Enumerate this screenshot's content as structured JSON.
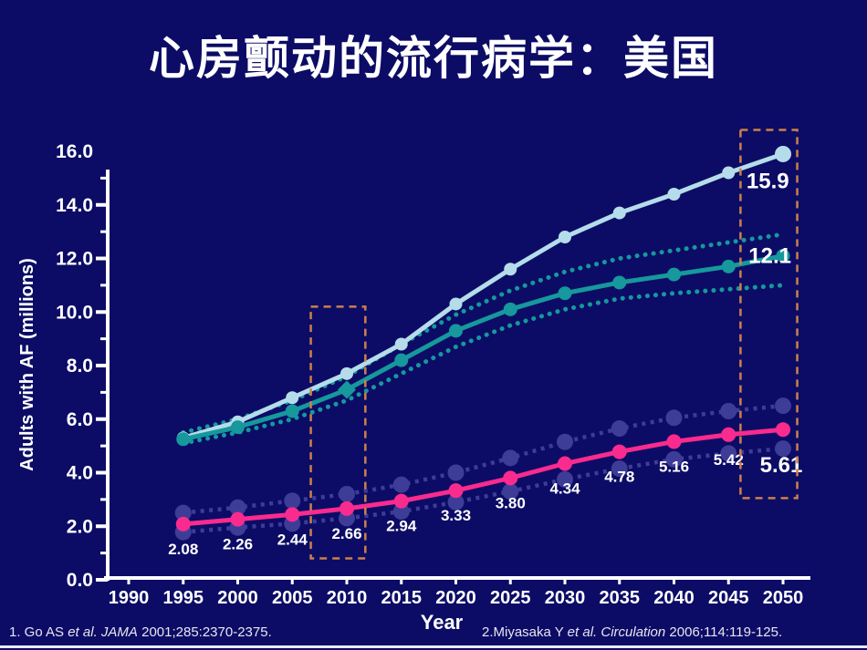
{
  "slide": {
    "title": "心房颤动的流行病学：美国",
    "footnotes": [
      {
        "parts": [
          {
            "text": "1. Go AS ",
            "italic": false
          },
          {
            "text": "et al.",
            "italic": true
          },
          {
            "text": " ",
            "italic": false
          },
          {
            "text": "JAMA",
            "italic": true
          },
          {
            "text": " 2001;285:2370-2375.",
            "italic": false
          }
        ]
      },
      {
        "parts": [
          {
            "text": "2.Miyasaka Y ",
            "italic": false
          },
          {
            "text": "et al.",
            "italic": true
          },
          {
            "text": " ",
            "italic": false
          },
          {
            "text": "Circulation",
            "italic": true
          },
          {
            "text": " 2006;114:119-125.",
            "italic": false
          }
        ]
      }
    ]
  },
  "chart_data": {
    "type": "line",
    "title": "心房颤动的流行病学：美国",
    "xlabel": "Year",
    "ylabel": "Adults with AF (millions)",
    "xlim": [
      1990,
      2050
    ],
    "ylim": [
      0.0,
      16.0
    ],
    "grid": false,
    "legend": "none",
    "background_color": "#0c0c66",
    "axis_color": "#ffffff",
    "x_ticks": [
      1990,
      1995,
      2000,
      2005,
      2010,
      2015,
      2020,
      2025,
      2030,
      2035,
      2040,
      2045,
      2050
    ],
    "x_tick_labels": [
      "1990",
      "1995",
      "2000",
      "2005",
      "2010",
      "2015",
      "2020",
      "2025",
      "2030",
      "2035",
      "2040",
      "2045",
      "2050"
    ],
    "y_ticks": [
      0,
      2,
      4,
      6,
      8,
      10,
      12,
      14,
      16
    ],
    "y_tick_labels": [
      "0.0",
      "2.0",
      "4.0",
      "6.0",
      "8.0",
      "10.0",
      "12.0",
      "14.0",
      "16.0"
    ],
    "x": [
      1995,
      2000,
      2005,
      2010,
      2015,
      2020,
      2025,
      2030,
      2035,
      2040,
      2045,
      2050
    ],
    "series": [
      {
        "name": "upper_curve",
        "color": "#b5dcea",
        "marker": "circle",
        "values": [
          5.3,
          5.9,
          6.8,
          7.7,
          8.8,
          10.3,
          11.6,
          12.8,
          13.7,
          14.4,
          15.2,
          15.9
        ],
        "end_label": {
          "text": "15.9",
          "year": 2048.6,
          "value": 14.9
        }
      },
      {
        "name": "middle_curve",
        "color": "#16989c",
        "marker": "circle",
        "diamond_index": 3,
        "values": [
          5.25,
          5.7,
          6.3,
          7.1,
          8.2,
          9.3,
          10.1,
          10.7,
          11.1,
          11.4,
          11.7,
          12.1
        ],
        "end_label": {
          "text": "12.1",
          "year": 2048.8,
          "value": 12.1
        },
        "band_color": "#16989c",
        "band_upper": [
          5.5,
          6.0,
          6.7,
          7.6,
          8.8,
          9.9,
          10.8,
          11.5,
          12.0,
          12.3,
          12.6,
          12.9
        ],
        "band_lower": [
          5.1,
          5.5,
          6.0,
          6.7,
          7.7,
          8.7,
          9.5,
          10.1,
          10.5,
          10.7,
          10.85,
          11.0
        ]
      },
      {
        "name": "lower_curve",
        "color": "#fa2b8e",
        "marker": "circle",
        "values": [
          2.08,
          2.26,
          2.44,
          2.66,
          2.94,
          3.33,
          3.8,
          4.34,
          4.78,
          5.16,
          5.42,
          5.61
        ],
        "point_labels": [
          "2.08",
          "2.26",
          "2.44",
          "2.66",
          "2.94",
          "3.33",
          "3.80",
          "4.34",
          "4.78",
          "5.16",
          "5.42",
          "5.61"
        ],
        "big_last_label": true,
        "band_color": "#3d3d97",
        "band_upper": [
          2.5,
          2.7,
          2.95,
          3.2,
          3.55,
          4.0,
          4.55,
          5.15,
          5.65,
          6.05,
          6.3,
          6.5
        ],
        "band_lower": [
          1.78,
          1.95,
          2.1,
          2.3,
          2.55,
          2.9,
          3.3,
          3.75,
          4.15,
          4.5,
          4.72,
          4.9
        ]
      }
    ],
    "annotation_boxes": [
      {
        "name": "highlight-2010",
        "color": "#cc8049",
        "year_range": [
          2006.7,
          2011.7
        ],
        "value_range": [
          0.8,
          10.2
        ]
      },
      {
        "name": "highlight-2050",
        "color": "#cc8049",
        "year_range": [
          2046.1,
          2051.3
        ],
        "value_range": [
          3.05,
          16.8
        ]
      }
    ]
  }
}
